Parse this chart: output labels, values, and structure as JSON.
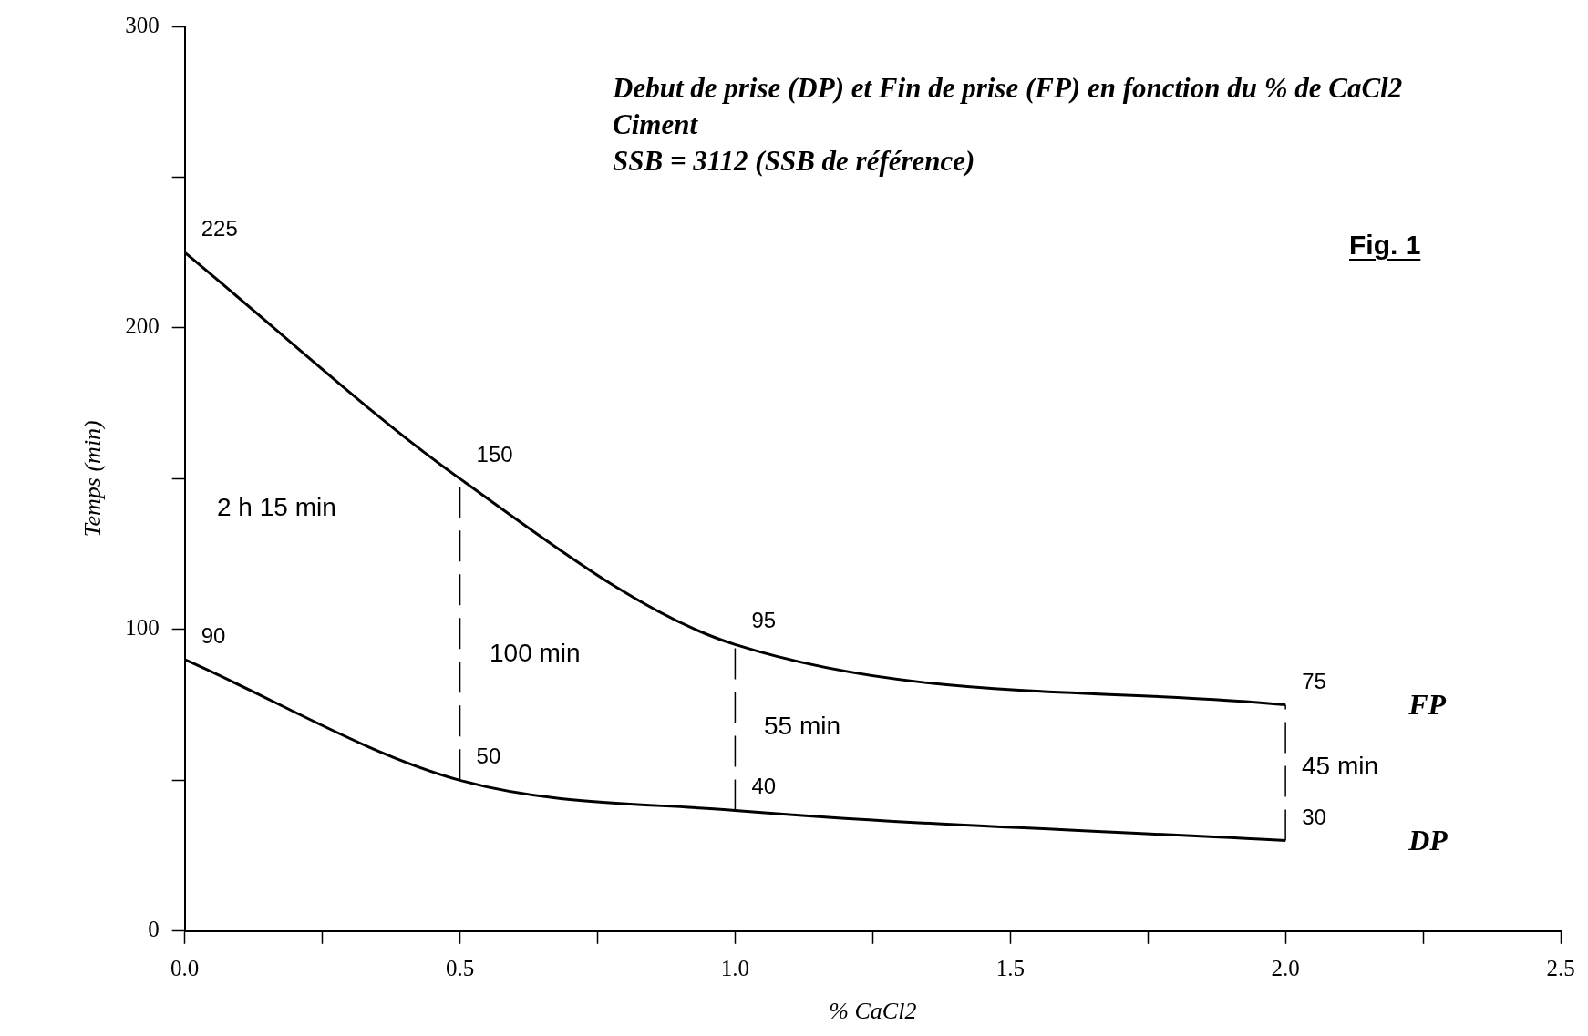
{
  "chart_data": {
    "type": "line",
    "title": "Debut de prise (DP) et Fin de prise (FP) en fonction du % de CaCl2",
    "subtitle": "Ciment\nSSB = 3112 (SSB de référence)",
    "xlabel": "% CaCl2",
    "ylabel": "Temps (min)",
    "x": [
      0,
      0.5,
      1,
      2
    ],
    "series": [
      {
        "name": "FP",
        "color": "#000000",
        "values": [
          225,
          150,
          95,
          75
        ]
      },
      {
        "name": "DP",
        "color": "#000000",
        "values": [
          90,
          50,
          40,
          30
        ]
      }
    ],
    "xlim": [
      0,
      2.5
    ],
    "xticks": [
      {
        "value": 0,
        "label": "0.0"
      },
      {
        "value": 0.25,
        "label": null
      },
      {
        "value": 0.5,
        "label": "0.5"
      },
      {
        "value": 0.75,
        "label": null
      },
      {
        "value": 1,
        "label": "1.0"
      },
      {
        "value": 1.25,
        "label": null
      },
      {
        "value": 1.5,
        "label": "1.5"
      },
      {
        "value": 1.75,
        "label": null
      },
      {
        "value": 2,
        "label": "2.0"
      },
      {
        "value": 2.25,
        "label": null
      },
      {
        "value": 2.5,
        "label": "2.5"
      }
    ],
    "ylim": [
      0,
      300
    ],
    "yticks": [
      0,
      {
        "value": 50,
        "label": null
      },
      100,
      {
        "value": 150,
        "label": null
      },
      200,
      {
        "value": 250,
        "label": null
      },
      300
    ],
    "data_labels": true,
    "marker": "none",
    "line_style": "solid",
    "grid": false,
    "legend": false,
    "annotations": [
      "Fig. 1",
      "2 h 15 min",
      "100 min",
      "55 min",
      "45 min"
    ]
  }
}
